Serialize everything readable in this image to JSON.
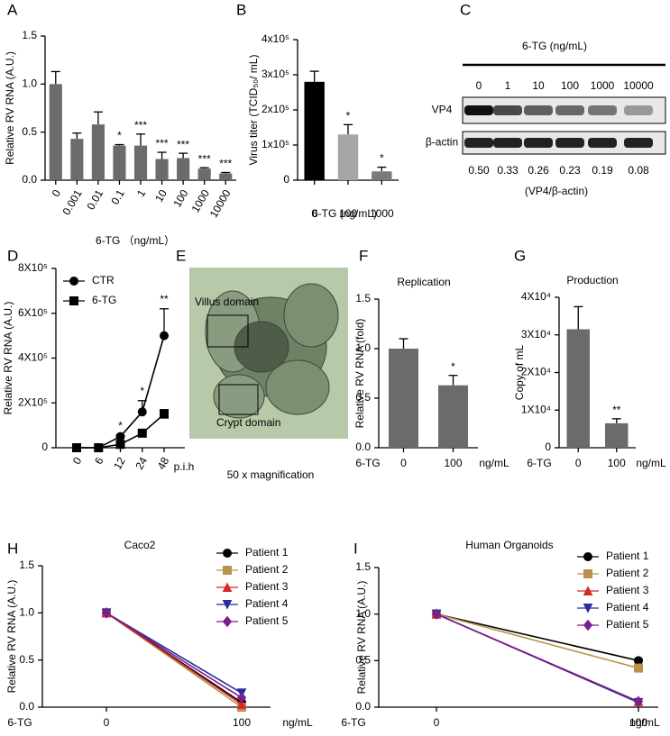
{
  "chart_data": [
    {
      "panel": "A",
      "type": "bar",
      "categories": [
        "0",
        "0.001",
        "0.01",
        "0.1",
        "1",
        "10",
        "100",
        "1000",
        "10000"
      ],
      "values": [
        1.0,
        0.43,
        0.58,
        0.36,
        0.36,
        0.22,
        0.23,
        0.12,
        0.07
      ],
      "errors": [
        0.13,
        0.06,
        0.13,
        0.01,
        0.12,
        0.07,
        0.05,
        0.01,
        0.01
      ],
      "annotations": [
        null,
        null,
        null,
        "*",
        "***",
        "***",
        "***",
        "***",
        "***"
      ],
      "color": "#6b6b6b",
      "ylim": [
        0,
        1.5
      ],
      "yticks": [
        {
          "value": 0,
          "label": "0.0"
        },
        {
          "value": 0.5,
          "label": "0.5"
        },
        {
          "value": 1.0,
          "label": "1.0"
        },
        {
          "value": 1.5,
          "label": "1.5"
        }
      ],
      "y_label": "Relative RV RNA (A.U.)",
      "x_label": "6-TG （ng/mL）"
    },
    {
      "panel": "B",
      "type": "bar",
      "categories": [
        "0",
        "100",
        "1000"
      ],
      "values": [
        280000,
        130000,
        25000
      ],
      "errors": [
        30000,
        28000,
        12000
      ],
      "annotations": [
        null,
        "*",
        "*"
      ],
      "colors": [
        "#000000",
        "#a6a6a6",
        "#7a7a7a"
      ],
      "ylim": [
        0,
        400000
      ],
      "yticks": [
        0,
        {
          "value": 100000,
          "label": "1x10⁵"
        },
        {
          "value": 200000,
          "label": "2x10⁵"
        },
        {
          "value": 300000,
          "label": "3x10⁵"
        },
        {
          "value": 400000,
          "label": "4x10⁵"
        }
      ],
      "y_label": "Virus titer (TCID₅₀/ mL)",
      "x_label": "6-TG (ng/mL)"
    },
    {
      "panel": "C",
      "type": "blot",
      "title": "6-TG (ng/mL)",
      "categories": [
        "0",
        "1",
        "10",
        "100",
        "1000",
        "10000"
      ],
      "rows": [
        "VP4",
        "β-actin"
      ],
      "values": [
        0.5,
        0.33,
        0.26,
        0.23,
        0.19,
        0.08
      ],
      "value_labels": [
        "0.50",
        "0.33",
        "0.26",
        "0.23",
        "0.19",
        "0.08"
      ],
      "x_label": "(VP4/β-actin)"
    },
    {
      "panel": "D",
      "type": "line",
      "categories": [
        "0",
        "6",
        "12",
        "24",
        "48"
      ],
      "series": [
        {
          "name": "CTR",
          "color": "#000000",
          "marker": "circle",
          "values": [
            0,
            0,
            50000,
            160000,
            500000
          ],
          "errors": [
            0,
            0,
            5000,
            50000,
            120000
          ]
        },
        {
          "name": "6-TG",
          "color": "#000000",
          "marker": "square",
          "values": [
            0,
            0,
            15000,
            65000,
            150000
          ],
          "errors": [
            0,
            0,
            3000,
            8000,
            20000
          ]
        }
      ],
      "annotations": [
        null,
        null,
        "*",
        "*",
        "**"
      ],
      "ylim": [
        0,
        800000
      ],
      "yticks": [
        0,
        {
          "value": 200000,
          "label": "2X10⁵"
        },
        {
          "value": 400000,
          "label": "4X10⁵"
        },
        {
          "value": 600000,
          "label": "6X10⁵"
        },
        {
          "value": 800000,
          "label": "8X10⁵"
        }
      ],
      "y_label": "Relative RV RNA (A.U.)",
      "x_unit": "p.i.h"
    },
    {
      "panel": "E",
      "type": "image",
      "annotations": [
        "Villus domain",
        "Crypt domain"
      ],
      "caption": "50 x magnification"
    },
    {
      "panel": "F",
      "type": "bar",
      "title": "Replication",
      "categories": [
        "0",
        "100"
      ],
      "values": [
        1.0,
        0.63
      ],
      "errors": [
        0.1,
        0.1
      ],
      "annotations": [
        null,
        "*"
      ],
      "color": "#6b6b6b",
      "ylim": [
        0,
        1.5
      ],
      "yticks": [
        {
          "value": 0,
          "label": "0.0"
        },
        {
          "value": 0.5,
          "label": "0.5"
        },
        {
          "value": 1.0,
          "label": "1.0"
        },
        {
          "value": 1.5,
          "label": "1.5"
        }
      ],
      "y_label": "Relative RV RNA (fold)",
      "x_label": "6-TG",
      "x_unit": "ng/mL"
    },
    {
      "panel": "G",
      "type": "bar",
      "title": "Production",
      "categories": [
        "0",
        "100"
      ],
      "values": [
        31500,
        6500
      ],
      "errors": [
        6000,
        1200
      ],
      "annotations": [
        null,
        "**"
      ],
      "color": "#6b6b6b",
      "ylim": [
        0,
        40000
      ],
      "yticks": [
        0,
        {
          "value": 10000,
          "label": "1X10⁴"
        },
        {
          "value": 20000,
          "label": "2X10⁴"
        },
        {
          "value": 30000,
          "label": "3X10⁴"
        },
        {
          "value": 40000,
          "label": "4X10⁴"
        }
      ],
      "y_label": "Copy of mL",
      "x_label": "6-TG",
      "x_unit": "ng/mL"
    },
    {
      "panel": "H",
      "type": "line",
      "title": "Caco2",
      "categories": [
        "0",
        "100"
      ],
      "series": [
        {
          "name": "Patient 1",
          "color": "#000000",
          "marker": "circle",
          "values": [
            1.0,
            0.05
          ]
        },
        {
          "name": "Patient 2",
          "color": "#b8924a",
          "marker": "square",
          "values": [
            1.0,
            0.0
          ]
        },
        {
          "name": "Patient 3",
          "color": "#d62728",
          "marker": "triangle",
          "values": [
            1.0,
            0.03
          ]
        },
        {
          "name": "Patient 4",
          "color": "#2b2ba0",
          "marker": "triangle-down",
          "values": [
            1.0,
            0.15
          ]
        },
        {
          "name": "Patient 5",
          "color": "#7a1f8c",
          "marker": "diamond",
          "values": [
            1.0,
            0.1
          ]
        }
      ],
      "ylim": [
        0,
        1.5
      ],
      "yticks": [
        {
          "value": 0,
          "label": "0.0"
        },
        {
          "value": 0.5,
          "label": "0.5"
        },
        {
          "value": 1.0,
          "label": "1.0"
        },
        {
          "value": 1.5,
          "label": "1.5"
        }
      ],
      "y_label": "Relative RV RNA (A.U.)",
      "x_label": "6-TG",
      "x_unit": "ng/mL"
    },
    {
      "panel": "I",
      "type": "line",
      "title": "Human Organoids",
      "categories": [
        "0",
        "100"
      ],
      "series": [
        {
          "name": "Patient 1",
          "color": "#000000",
          "marker": "circle",
          "values": [
            1.0,
            0.5
          ]
        },
        {
          "name": "Patient 2",
          "color": "#b8924a",
          "marker": "square",
          "values": [
            1.0,
            0.42
          ]
        },
        {
          "name": "Patient 3",
          "color": "#d62728",
          "marker": "triangle",
          "values": [
            1.0,
            0.06
          ]
        },
        {
          "name": "Patient 4",
          "color": "#2b2ba0",
          "marker": "triangle-down",
          "values": [
            1.0,
            0.05
          ]
        },
        {
          "name": "Patient 5",
          "color": "#7a1f8c",
          "marker": "diamond",
          "values": [
            1.0,
            0.06
          ]
        }
      ],
      "ylim": [
        0,
        1.5
      ],
      "yticks": [
        {
          "value": 0,
          "label": "0.0"
        },
        {
          "value": 0.5,
          "label": "0.5"
        },
        {
          "value": 1.0,
          "label": "1.0"
        },
        {
          "value": 1.5,
          "label": "1.5"
        }
      ],
      "y_label": "Relative RV RNA (A.U.)",
      "x_label": "6-TG",
      "x_unit": "ng/mL"
    }
  ]
}
